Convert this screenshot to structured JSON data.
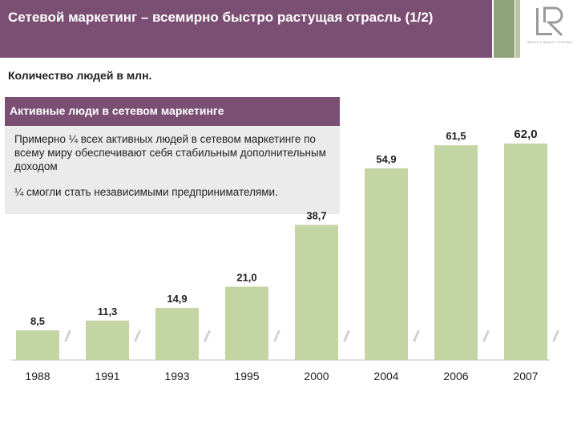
{
  "header": {
    "title": "Сетевой маркетинг – всемирно быстро растущая отрасль (1/2)"
  },
  "logo": {
    "text": "LR",
    "tagline": "HEALTH & BEAUTY SYSTEMS"
  },
  "subtitle": "Количество людей в млн.",
  "info_box": {
    "header": "Активные люди в сетевом маркетинге",
    "paragraph1": "Примерно ¼ всех активных людей в сетевом маркетинге по всему миру обеспечивают себя стабильным дополнительным доходом",
    "paragraph2": "¼ смогли стать независимыми предпринимателями."
  },
  "colors": {
    "header_bg": "#7b4f74",
    "bar_fill": "#c3d5a3",
    "info_bg": "#ebebeb",
    "accent_green": "#8ea37a"
  },
  "chart_data": {
    "type": "bar",
    "categories": [
      "1988",
      "1991",
      "1993",
      "1995",
      "2000",
      "2004",
      "2006",
      "2007"
    ],
    "values": [
      8.5,
      11.3,
      14.9,
      21.0,
      38.7,
      54.9,
      61.5,
      62.0
    ],
    "value_labels": [
      "8,5",
      "11,3",
      "14,9",
      "21,0",
      "38,7",
      "54,9",
      "61,5",
      "62,0"
    ],
    "title": "",
    "xlabel": "",
    "ylabel": "",
    "ylim": [
      0,
      62
    ],
    "grid": false,
    "legend": "none",
    "axis_break_marks": true
  }
}
